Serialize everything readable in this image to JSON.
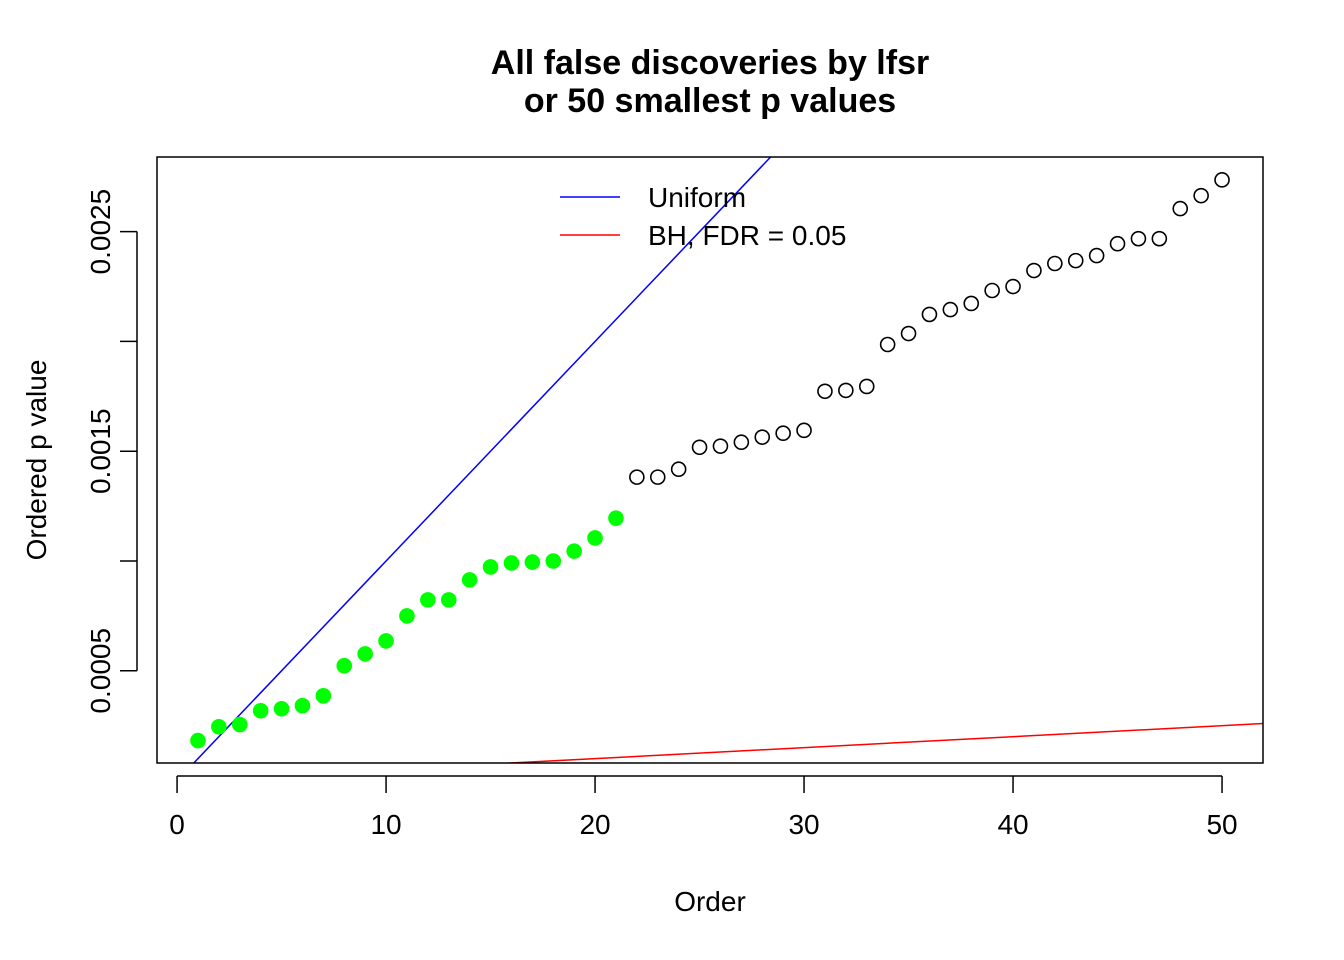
{
  "chart_data": {
    "type": "scatter",
    "title": [
      "All false discoveries by lfsr",
      "or 50 smallest p values"
    ],
    "xlabel": "Order",
    "ylabel": "Ordered p value",
    "xlim": [
      -0.96,
      51.96
    ],
    "ylim": [
      8e-05,
      0.00284
    ],
    "xticks": [
      0,
      10,
      20,
      30,
      40,
      50
    ],
    "xtick_labels": [
      "0",
      "10",
      "20",
      "30",
      "40",
      "50"
    ],
    "yticks": [
      0.0005,
      0.001,
      0.0015,
      0.002,
      0.0025
    ],
    "ytick_labels": [
      "0.0005",
      "",
      "0.0015",
      "",
      "0.0025"
    ],
    "grid": false,
    "legend_position": "top-center",
    "points": {
      "x": [
        1,
        2,
        3,
        4,
        5,
        6,
        7,
        8,
        9,
        10,
        11,
        12,
        13,
        14,
        15,
        16,
        17,
        18,
        19,
        20,
        21,
        22,
        23,
        24,
        25,
        26,
        27,
        28,
        29,
        30,
        31,
        32,
        33,
        34,
        35,
        36,
        37,
        38,
        39,
        40,
        41,
        42,
        43,
        44,
        45,
        46,
        47,
        48,
        49,
        50
      ],
      "y": [
        0.000182,
        0.000245,
        0.000255,
        0.000318,
        0.000327,
        0.000341,
        0.000386,
        0.000523,
        0.000577,
        0.000636,
        0.00075,
        0.000823,
        0.000823,
        0.000914,
        0.000973,
        0.000991,
        0.000995,
        0.001,
        0.001045,
        0.001105,
        0.001195,
        0.001382,
        0.001382,
        0.001418,
        0.001518,
        0.001523,
        0.001541,
        0.001564,
        0.001582,
        0.001595,
        0.001773,
        0.001777,
        0.001795,
        0.001986,
        0.002036,
        0.002123,
        0.002145,
        0.002173,
        0.002232,
        0.00225,
        0.002323,
        0.002355,
        0.002368,
        0.002391,
        0.002445,
        0.002468,
        0.002468,
        0.002605,
        0.002664,
        0.002736
      ],
      "false_discovery_count": 21,
      "false_discovery_color": "#00ff00",
      "other_color": "#000000"
    },
    "lines": [
      {
        "name": "Uniform",
        "slope": 0.0001,
        "intercept": 0,
        "color": "#0000ff"
      },
      {
        "name": "BH, FDR = 0.05",
        "slope": 5e-06,
        "intercept": 0,
        "color": "#ff0000"
      }
    ]
  }
}
